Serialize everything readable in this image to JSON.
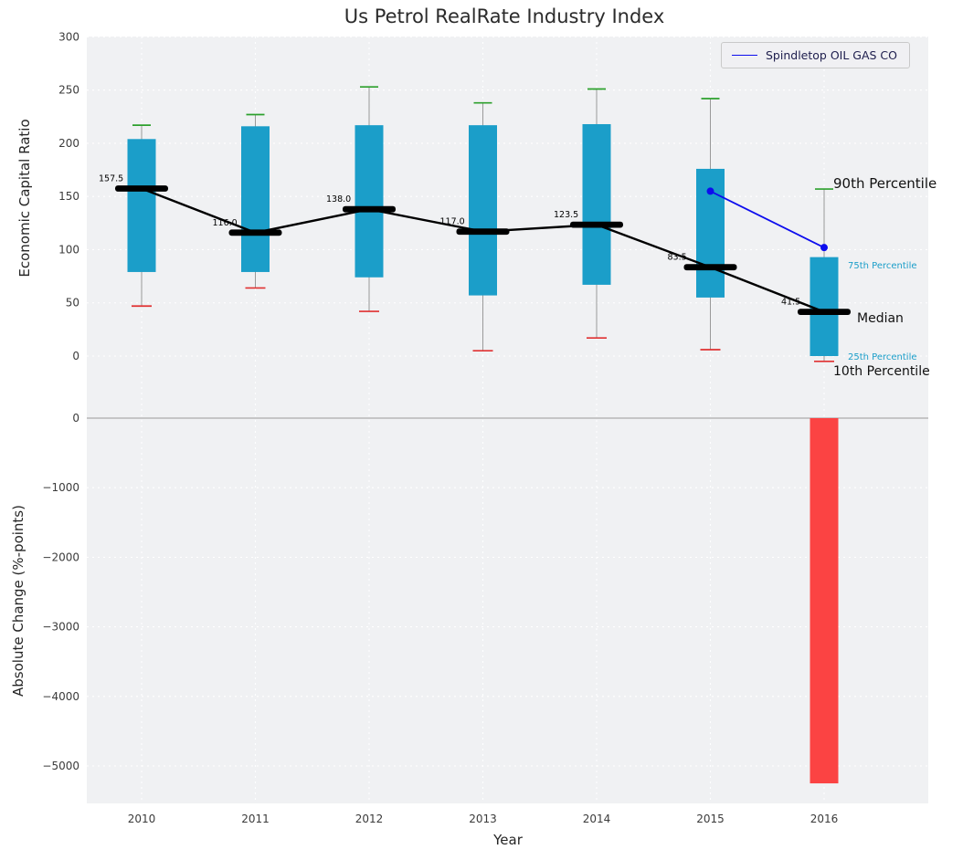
{
  "chart_data": [
    {
      "type": "box",
      "title": "Us Petrol RealRate Industry Index",
      "ylabel": "Economic Capital Ratio",
      "ylim": [
        -45,
        300
      ],
      "yticks": [
        0,
        50,
        100,
        150,
        200,
        250,
        300
      ],
      "grid": true,
      "categories": [
        2010,
        2011,
        2012,
        2013,
        2014,
        2015,
        2016
      ],
      "series": [
        {
          "name": "90th Percentile",
          "values": [
            217,
            227,
            253,
            238,
            251,
            242,
            157
          ]
        },
        {
          "name": "75th Percentile",
          "values": [
            204,
            216,
            217,
            217,
            218,
            176,
            93
          ]
        },
        {
          "name": "Median",
          "values": [
            157.5,
            116.0,
            138.0,
            117.0,
            123.5,
            83.5,
            41.5
          ]
        },
        {
          "name": "25th Percentile",
          "values": [
            79,
            79,
            74,
            57,
            67,
            55,
            0
          ]
        },
        {
          "name": "10th Percentile",
          "values": [
            47,
            64,
            42,
            5,
            17,
            6,
            -5
          ]
        }
      ],
      "median_labels": [
        "157.5",
        "116.0",
        "138.0",
        "117.0",
        "123.5",
        "83.5",
        "41.5"
      ],
      "overlay_line": {
        "name": "Spindletop OIL GAS CO",
        "x": [
          2015,
          2016
        ],
        "y": [
          155,
          102
        ]
      },
      "annotations": [
        "90th Percentile",
        "75th Percentile",
        "Median",
        "25th Percentile",
        "10th Percentile"
      ],
      "legend_position": "upper right"
    },
    {
      "type": "bar",
      "ylabel": "Absolute Change (%-points)",
      "xlabel": "Year",
      "ylim": [
        -5550,
        210
      ],
      "yticks": [
        0,
        -1000,
        -2000,
        -3000,
        -4000,
        -5000
      ],
      "grid": true,
      "categories": [
        2010,
        2011,
        2012,
        2013,
        2014,
        2015,
        2016
      ],
      "values": [
        0,
        0,
        0,
        0,
        0,
        0,
        -5250
      ]
    }
  ],
  "colors": {
    "box_fill": "#1b9ec9",
    "median": "#000000",
    "p90_cap": "#2ca02c",
    "p10_cap": "#e03131",
    "whisker": "#999999",
    "overlay_line": "#0d0dee",
    "negative_bar": "#fb4343",
    "plot_background": "#f0f1f3",
    "grid": "#ffffff",
    "zero_line": "#ababab",
    "tick_label": "#3b3b3b"
  }
}
